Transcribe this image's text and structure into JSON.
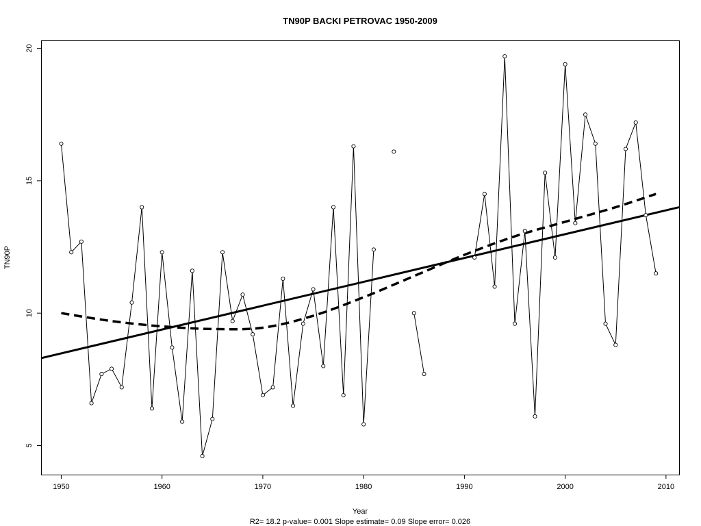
{
  "chart_data": {
    "type": "line",
    "title": "TN90P    BACKI PETROVAC 1950-2009",
    "xlabel": "Year",
    "ylabel": "TN90P",
    "footer": "R2= 18.2  p-value= 0.001  Slope estimate= 0.09  Slope error= 0.026",
    "xlim": [
      1948,
      2011.3
    ],
    "ylim": [
      3.9,
      20.3
    ],
    "xticks": [
      1950,
      1960,
      1970,
      1980,
      1990,
      2000,
      2010
    ],
    "yticks": [
      5,
      10,
      15,
      20
    ],
    "grid": false,
    "series": [
      {
        "style": "line-with-points",
        "x": [
          1950,
          1951,
          1952,
          1953,
          1954,
          1955,
          1956,
          1957,
          1958,
          1959,
          1960,
          1961,
          1962,
          1963,
          1964,
          1965,
          1966,
          1967,
          1968,
          1969,
          1970,
          1971,
          1972,
          1973,
          1974,
          1975,
          1976,
          1977,
          1978,
          1979,
          1980,
          1981,
          1982,
          1983,
          1984,
          1985,
          1986,
          1987,
          1988,
          1989,
          1990,
          1991,
          1992,
          1993,
          1994,
          1995,
          1996,
          1997,
          1998,
          1999,
          2000,
          2001,
          2002,
          2003,
          2004,
          2005,
          2006,
          2007,
          2008,
          2009
        ],
        "y": [
          16.4,
          12.3,
          12.7,
          6.6,
          7.7,
          7.9,
          7.2,
          10.4,
          14.0,
          6.4,
          12.3,
          8.7,
          5.9,
          11.6,
          4.6,
          6.0,
          12.3,
          9.7,
          10.7,
          9.2,
          6.9,
          7.2,
          11.3,
          6.5,
          9.6,
          10.9,
          8.0,
          14.0,
          6.9,
          16.3,
          5.8,
          12.4,
          null,
          16.1,
          null,
          10.0,
          7.7,
          null,
          null,
          null,
          null,
          12.1,
          14.5,
          11.0,
          19.7,
          9.6,
          13.1,
          6.1,
          15.3,
          12.1,
          19.4,
          13.4,
          17.5,
          16.4,
          9.6,
          8.8,
          16.2,
          17.2,
          13.7,
          11.5
        ]
      },
      {
        "style": "linear-trend",
        "x": [
          1948,
          2011.3
        ],
        "y": [
          8.3,
          14.0
        ]
      },
      {
        "style": "smooth-trend",
        "x": [
          1950,
          1955,
          1960,
          1965,
          1970,
          1975,
          1980,
          1985,
          1990,
          1995,
          2000,
          2005,
          2009
        ],
        "y": [
          10.0,
          9.7,
          9.5,
          9.4,
          9.45,
          9.9,
          10.6,
          11.4,
          12.2,
          12.9,
          13.45,
          14.0,
          14.5
        ]
      }
    ]
  }
}
